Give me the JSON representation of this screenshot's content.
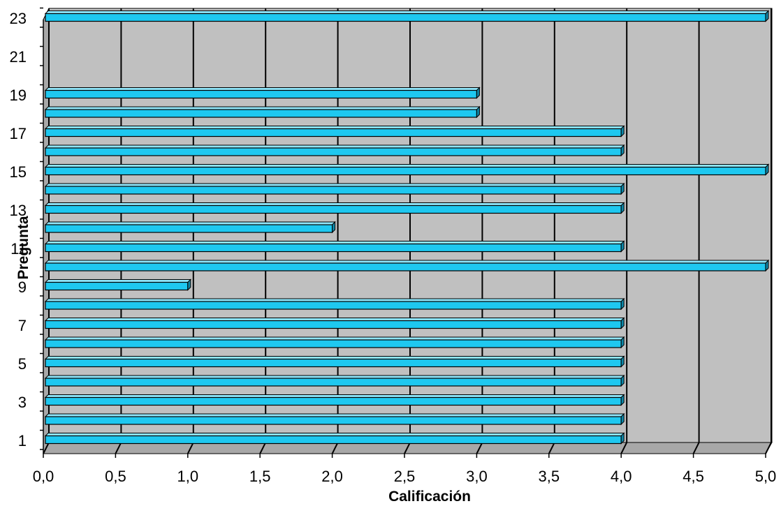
{
  "chart_data": {
    "type": "bar",
    "orientation": "horizontal",
    "style": "3d",
    "title": "",
    "xlabel": "Calificación",
    "ylabel": "Pregunta",
    "xlim": [
      0,
      5
    ],
    "x_ticks": [
      "0,0",
      "0,5",
      "1,0",
      "1,5",
      "2,0",
      "2,5",
      "3,0",
      "3,5",
      "4,0",
      "4,5",
      "5,0"
    ],
    "y_tick_labels": [
      "1",
      "3",
      "5",
      "7",
      "9",
      "11",
      "13",
      "15",
      "17",
      "19",
      "21",
      "23"
    ],
    "categories": [
      1,
      2,
      3,
      4,
      5,
      6,
      7,
      8,
      9,
      10,
      11,
      12,
      13,
      14,
      15,
      16,
      17,
      18,
      19,
      20,
      21,
      22,
      23
    ],
    "values": [
      4,
      4,
      4,
      4,
      4,
      4,
      4,
      4,
      1,
      5,
      4,
      2,
      4,
      4,
      5,
      4,
      4,
      3,
      3,
      null,
      null,
      null,
      5
    ],
    "grid": true,
    "legend": "none",
    "colors": {
      "bar_front": "#1EC8F0",
      "bar_top": "#8FE6FA",
      "bar_side": "#0E86A6",
      "plot_back": "#C0C0C0",
      "plot_floor": "#A8A8A8",
      "gridline": "#000000"
    }
  }
}
